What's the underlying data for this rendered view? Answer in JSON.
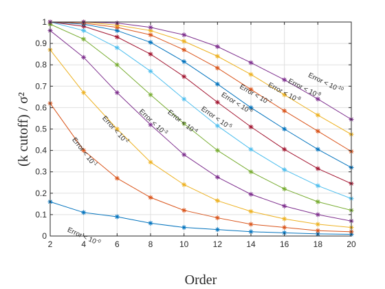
{
  "chart_data": {
    "type": "line",
    "xlabel": "Order",
    "ylabel": "(k cutoff) / σ²",
    "xlim": [
      2,
      20
    ],
    "ylim": [
      0,
      1
    ],
    "x_ticks": [
      "2",
      "4",
      "6",
      "8",
      "10",
      "12",
      "14",
      "16",
      "18",
      "20"
    ],
    "y_ticks": [
      "0",
      "0.1",
      "0.2",
      "0.3",
      "0.4",
      "0.5",
      "0.6",
      "0.7",
      "0.8",
      "0.9",
      "1"
    ],
    "grid": true,
    "marker": "asterisk",
    "x": [
      2,
      4,
      6,
      8,
      10,
      12,
      14,
      16,
      18,
      20
    ],
    "series": [
      {
        "name": "Error < 10^-0",
        "label_base": "Error < 10",
        "label_exp": "-0",
        "color": "#0072bd",
        "values": [
          0.16,
          0.11,
          0.09,
          0.06,
          0.04,
          0.03,
          0.02,
          0.015,
          0.01,
          0.008
        ]
      },
      {
        "name": "Error < 10^-1",
        "label_base": "Error < 10",
        "label_exp": "-1",
        "color": "#d95319",
        "values": [
          0.62,
          0.4,
          0.27,
          0.18,
          0.12,
          0.085,
          0.055,
          0.04,
          0.025,
          0.02
        ]
      },
      {
        "name": "Error < 10^-2",
        "label_base": "Error < 10",
        "label_exp": "-2",
        "color": "#edb120",
        "values": [
          0.87,
          0.67,
          0.5,
          0.345,
          0.24,
          0.165,
          0.115,
          0.08,
          0.055,
          0.04
        ]
      },
      {
        "name": "Error < 10^-3",
        "label_base": "Error < 10",
        "label_exp": "-3",
        "color": "#7e2f8e",
        "values": [
          0.96,
          0.835,
          0.67,
          0.52,
          0.38,
          0.275,
          0.195,
          0.14,
          0.1,
          0.07
        ]
      },
      {
        "name": "Error < 10^-4",
        "label_base": "Error < 10",
        "label_exp": "-4",
        "color": "#77ac30",
        "values": [
          0.99,
          0.92,
          0.8,
          0.66,
          0.525,
          0.4,
          0.3,
          0.22,
          0.16,
          0.12
        ]
      },
      {
        "name": "Error < 10^-5",
        "label_base": "Error < 10",
        "label_exp": "-5",
        "color": "#4dbeee",
        "values": [
          1.0,
          0.96,
          0.88,
          0.77,
          0.64,
          0.515,
          0.405,
          0.31,
          0.235,
          0.175
        ]
      },
      {
        "name": "Error < 10^-6",
        "label_base": "Error < 10",
        "label_exp": "-6",
        "color": "#a2142f",
        "values": [
          1.0,
          0.98,
          0.93,
          0.85,
          0.745,
          0.625,
          0.51,
          0.405,
          0.315,
          0.245
        ]
      },
      {
        "name": "Error < 10^-7",
        "label_base": "Error < 10",
        "label_exp": "-7",
        "color": "#0072bd",
        "values": [
          1.0,
          0.99,
          0.96,
          0.905,
          0.815,
          0.71,
          0.6,
          0.5,
          0.405,
          0.32
        ]
      },
      {
        "name": "Error < 10^-8",
        "label_base": "Error < 10",
        "label_exp": "-8",
        "color": "#d95319",
        "values": [
          1.0,
          0.995,
          0.975,
          0.94,
          0.87,
          0.785,
          0.685,
          0.585,
          0.49,
          0.395
        ]
      },
      {
        "name": "Error < 10^-9",
        "label_base": "Error < 10",
        "label_exp": "-9",
        "color": "#edb120",
        "values": [
          1.0,
          1.0,
          0.985,
          0.96,
          0.91,
          0.84,
          0.755,
          0.66,
          0.565,
          0.475
        ]
      },
      {
        "name": "Error < 10^-10",
        "label_base": "Error < 10",
        "label_exp": "-10",
        "color": "#7e2f8e",
        "values": [
          1.0,
          1.0,
          0.995,
          0.975,
          0.94,
          0.885,
          0.81,
          0.73,
          0.64,
          0.545
        ]
      }
    ]
  }
}
